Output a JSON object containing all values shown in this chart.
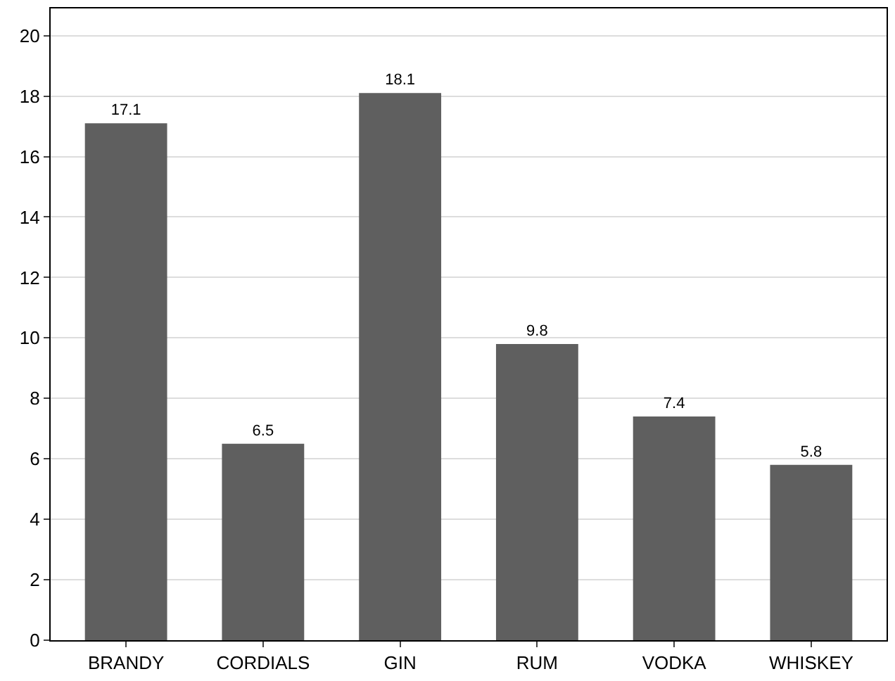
{
  "chart_data": {
    "type": "bar",
    "categories": [
      "BRANDY",
      "CORDIALS",
      "GIN",
      "RUM",
      "VODKA",
      "WHISKEY"
    ],
    "values": [
      17.1,
      6.5,
      18.1,
      9.8,
      7.4,
      5.8
    ],
    "color": "#5f5f5f",
    "ylim": [
      0,
      20.9
    ],
    "yticks": [
      0,
      2,
      4,
      6,
      8,
      10,
      12,
      14,
      16,
      18,
      20
    ],
    "grid": "y",
    "data_labels": true
  }
}
